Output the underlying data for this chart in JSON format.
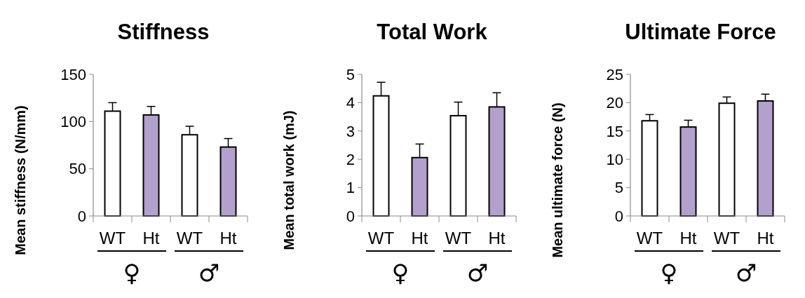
{
  "chart_data": [
    {
      "type": "bar",
      "title": "Stiffness",
      "ylabel": "Mean stiffness (N/mm)",
      "categories": [
        "WT",
        "Ht",
        "WT",
        "Ht"
      ],
      "values": [
        111,
        107,
        86,
        73
      ],
      "colors": [
        "#ffffff",
        "#b3a0cc",
        "#ffffff",
        "#b3a0cc"
      ],
      "errors": [
        [
          111,
          120
        ],
        [
          107,
          116
        ],
        [
          86,
          95
        ],
        [
          73,
          82
        ]
      ],
      "ylim": [
        0,
        150
      ],
      "yticks": [
        0,
        50,
        100,
        150
      ],
      "grid": false,
      "annotations": [
        "♀",
        "♂"
      ]
    },
    {
      "type": "bar",
      "title": "Total Work",
      "ylabel": "Mean total work (mJ)",
      "categories": [
        "WT",
        "Ht",
        "WT",
        "Ht"
      ],
      "values": [
        4.24,
        2.06,
        3.54,
        3.85
      ],
      "colors": [
        "#ffffff",
        "#b3a0cc",
        "#ffffff",
        "#b3a0cc"
      ],
      "errors": [
        [
          4.24,
          4.72
        ],
        [
          2.06,
          2.54
        ],
        [
          3.54,
          4.02
        ],
        [
          3.85,
          4.35
        ]
      ],
      "ylim": [
        0,
        5
      ],
      "yticks": [
        0,
        1,
        2,
        3,
        4,
        5
      ],
      "grid": false,
      "annotations": [
        "♀",
        "♂"
      ]
    },
    {
      "type": "bar",
      "title": "Ultimate Force",
      "ylabel": "Mean ultimate force (N)",
      "categories": [
        "WT",
        "Ht",
        "WT",
        "Ht"
      ],
      "values": [
        16.8,
        15.7,
        19.9,
        20.3
      ],
      "colors": [
        "#ffffff",
        "#b3a0cc",
        "#ffffff",
        "#b3a0cc"
      ],
      "errors": [
        [
          16.8,
          17.9
        ],
        [
          15.7,
          16.9
        ],
        [
          19.9,
          21.0
        ],
        [
          20.3,
          21.5
        ]
      ],
      "ylim": [
        0,
        25
      ],
      "yticks": [
        0,
        5,
        10,
        15,
        20,
        25
      ],
      "grid": false,
      "annotations": [
        "♀",
        "♂"
      ]
    }
  ]
}
